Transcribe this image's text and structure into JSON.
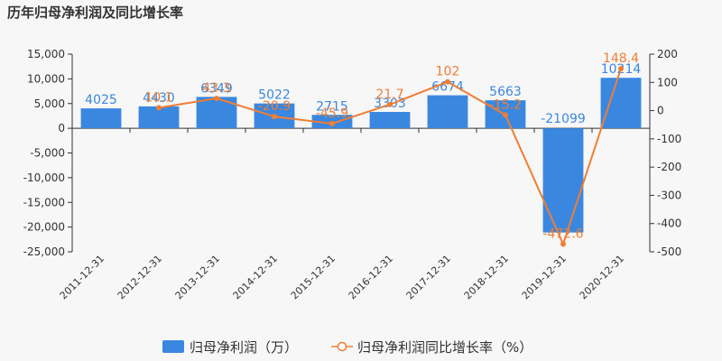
{
  "chart_data": {
    "type": "bar+line",
    "title": "历年归母净利润及同比增长率",
    "categories": [
      "2011-12-31",
      "2012-12-31",
      "2013-12-31",
      "2014-12-31",
      "2015-12-31",
      "2016-12-31",
      "2017-12-31",
      "2018-12-31",
      "2019-12-31",
      "2020-12-31"
    ],
    "series": [
      {
        "name": "归母净利润（万）",
        "type": "bar",
        "axis": "left",
        "color": "#3a87e0",
        "values": [
          4025,
          4430,
          6349,
          5022,
          2715,
          3303,
          6674,
          5663,
          -21099,
          10214
        ],
        "labels": [
          "4025",
          "4430",
          "6349",
          "5022",
          "2715",
          "3303",
          "6674",
          "5663",
          "-21099",
          "10214"
        ]
      },
      {
        "name": "归母净利润同比增长率（%）",
        "type": "line",
        "axis": "right",
        "color": "#f07e33",
        "values": [
          null,
          10.1,
          43.3,
          -20.9,
          -45.9,
          21.7,
          102,
          -15.2,
          -472.6,
          148.4
        ],
        "labels": [
          "",
          "10.1",
          "43.3",
          "-20.9",
          "-45.9",
          "21.7",
          "102",
          "-15.2",
          "-472.6",
          "148.4"
        ]
      }
    ],
    "y_left": {
      "range": [
        -25000,
        15000
      ],
      "ticks": [
        "15,000",
        "10,000",
        "5,000",
        "0",
        "-5,000",
        "-10,000",
        "-15,000",
        "-20,000",
        "-25,000"
      ],
      "tick_values": [
        15000,
        10000,
        5000,
        0,
        -5000,
        -10000,
        -15000,
        -20000,
        -25000
      ]
    },
    "y_right": {
      "range": [
        -500,
        200
      ],
      "ticks": [
        "200",
        "100",
        "0",
        "-100",
        "-200",
        "-300",
        "-400",
        "-500"
      ],
      "tick_values": [
        200,
        100,
        0,
        -100,
        -200,
        -300,
        -400,
        -500
      ]
    },
    "grid": false,
    "legend_position": "bottom-center"
  }
}
